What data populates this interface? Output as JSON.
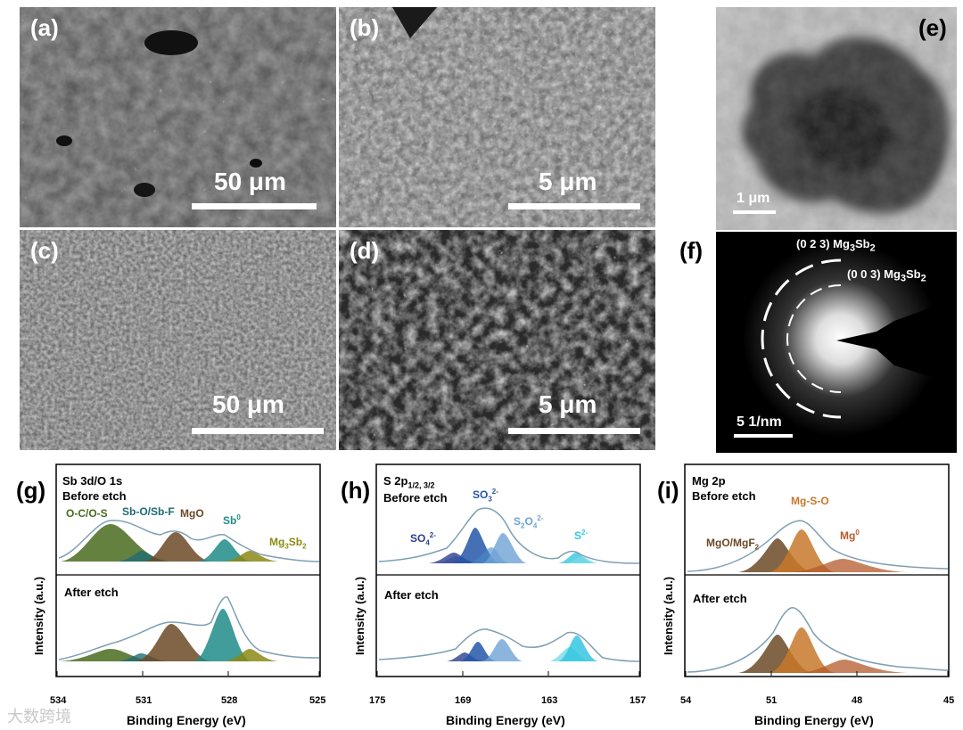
{
  "panels": {
    "a": {
      "label": "(a)",
      "scale": "50 μm"
    },
    "b": {
      "label": "(b)",
      "scale": "5 μm"
    },
    "c": {
      "label": "(c)",
      "scale": "50 μm"
    },
    "d": {
      "label": "(d)",
      "scale": "5 μm"
    },
    "e": {
      "label": "(e)",
      "scale": "1 μm"
    },
    "f": {
      "label": "(f)",
      "scale": "5 1/nm",
      "ring1_text": "(0 2 3) Mg",
      "ring1_sub3": "3",
      "ring1_sb": "Sb",
      "ring1_sub2": "2",
      "ring2_text": "(0 0 3) Mg",
      "ring2_sub3": "3",
      "ring2_sb": "Sb",
      "ring2_sub2": "2"
    },
    "g": {
      "label": "(g)",
      "title_line1": "Sb 3d/O 1s",
      "title_line2": "Before etch",
      "after": "After etch",
      "peaks": [
        "O-C/O-S",
        "Sb-O/Sb-F",
        "MgO",
        "Sb",
        "0",
        "Mg",
        "3",
        "Sb",
        "2"
      ],
      "xticks": [
        "534",
        "531",
        "528",
        "525"
      ]
    },
    "h": {
      "label": "(h)",
      "title_main": "S 2p",
      "title_sub": "1/2, 3/2",
      "title_line2": "Before etch",
      "after": "After etch",
      "peaks": {
        "so4": "SO",
        "so4_sub": "4",
        "so4_sup": "2-",
        "so3": "SO",
        "so3_sub": "3",
        "so3_sup": "2-",
        "s2o4": "S",
        "s2o4_sub1": "2",
        "s2o4_o": "O",
        "s2o4_sub2": "4",
        "s2o4_sup": "2-",
        "s": "S",
        "s_sup": "2-"
      },
      "xticks": [
        "175",
        "169",
        "163",
        "157"
      ]
    },
    "i": {
      "label": "(i)",
      "title_line1": "Mg 2p",
      "title_line2": "Before etch",
      "after": "After etch",
      "peaks": {
        "mgo": "MgO/MgF",
        "mgo_sub": "2",
        "mgso": "Mg-S-O",
        "mg0": "Mg",
        "mg0_sup": "0"
      },
      "xticks": [
        "54",
        "51",
        "48",
        "45"
      ]
    },
    "axes": {
      "ylabel": "Intensity (a.u.)",
      "xlabel": "Binding Energy (eV)"
    }
  },
  "colors": {
    "green": "#4a6b1e",
    "teal": "#1e8c87",
    "brown": "#6b4a26",
    "olive": "#8c8a14",
    "blue": "#2457a8",
    "lightblue": "#6fa3d6",
    "cyan": "#34c6e0",
    "orange": "#c8782a",
    "fitline": "#7f9fb3"
  },
  "watermark": "大数跨境"
}
